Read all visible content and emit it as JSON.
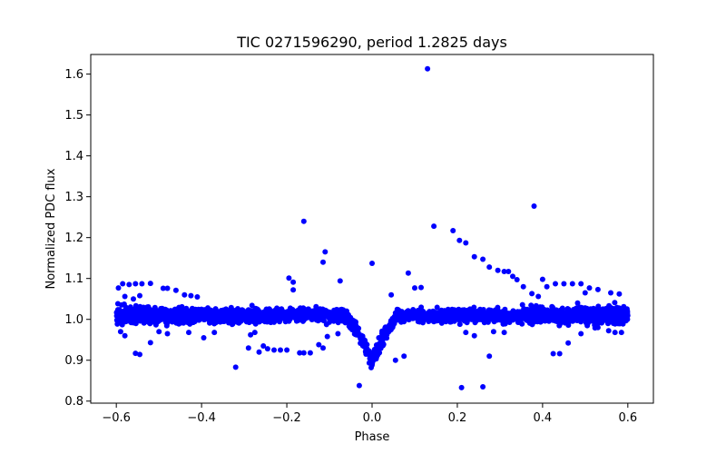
{
  "chart_data": {
    "type": "scatter",
    "title": "TIC 0271596290, period 1.2825 days",
    "xlabel": "Phase",
    "ylabel": "Normalized PDC flux",
    "xlim": [
      -0.66,
      0.66
    ],
    "ylim": [
      0.795,
      1.648
    ],
    "xticks": [
      -0.6,
      -0.4,
      -0.2,
      0.0,
      0.2,
      0.4,
      0.6
    ],
    "xtick_labels": [
      "−0.6",
      "−0.4",
      "−0.2",
      "0.0",
      "0.2",
      "0.4",
      "0.6"
    ],
    "yticks": [
      0.8,
      0.9,
      1.0,
      1.1,
      1.2,
      1.3,
      1.4,
      1.5,
      1.6
    ],
    "ytick_labels": [
      "0.8",
      "0.9",
      "1.0",
      "1.1",
      "1.2",
      "1.3",
      "1.4",
      "1.5",
      "1.6"
    ],
    "grid": false,
    "marker_color": "#0000ff",
    "series": [
      {
        "name": "PDC flux",
        "band": {
          "x_range": [
            -0.6,
            0.6
          ],
          "baseline_flux": 1.01,
          "scatter": 0.015,
          "dip_center": 0.0,
          "dip_half_width": 0.07,
          "dip_min_flux": 0.895
        },
        "points": [
          [
            0.13,
            1.613
          ],
          [
            0.38,
            1.277
          ],
          [
            0.145,
            1.228
          ],
          [
            -0.16,
            1.24
          ],
          [
            0.19,
            1.217
          ],
          [
            0.205,
            1.193
          ],
          [
            0.22,
            1.187
          ],
          [
            0.24,
            1.153
          ],
          [
            0.26,
            1.147
          ],
          [
            0.275,
            1.128
          ],
          [
            -0.11,
            1.165
          ],
          [
            -0.115,
            1.14
          ],
          [
            0.0,
            1.137
          ],
          [
            0.085,
            1.113
          ],
          [
            0.1,
            1.077
          ],
          [
            0.115,
            1.078
          ],
          [
            -0.075,
            1.094
          ],
          [
            -0.195,
            1.101
          ],
          [
            -0.185,
            1.091
          ],
          [
            -0.185,
            1.072
          ],
          [
            -0.54,
            1.087
          ],
          [
            -0.555,
            1.087
          ],
          [
            -0.57,
            1.085
          ],
          [
            -0.585,
            1.087
          ],
          [
            -0.52,
            1.088
          ],
          [
            -0.595,
            1.077
          ],
          [
            -0.49,
            1.076
          ],
          [
            -0.48,
            1.076
          ],
          [
            -0.46,
            1.071
          ],
          [
            -0.44,
            1.06
          ],
          [
            -0.425,
            1.058
          ],
          [
            -0.41,
            1.055
          ],
          [
            0.295,
            1.12
          ],
          [
            0.31,
            1.117
          ],
          [
            0.32,
            1.117
          ],
          [
            0.33,
            1.105
          ],
          [
            0.34,
            1.097
          ],
          [
            0.355,
            1.08
          ],
          [
            0.4,
            1.098
          ],
          [
            0.41,
            1.08
          ],
          [
            0.43,
            1.087
          ],
          [
            0.45,
            1.087
          ],
          [
            0.47,
            1.087
          ],
          [
            0.49,
            1.087
          ],
          [
            0.51,
            1.077
          ],
          [
            0.53,
            1.073
          ],
          [
            0.56,
            1.065
          ],
          [
            0.58,
            1.062
          ],
          [
            0.5,
            1.065
          ],
          [
            0.39,
            1.056
          ],
          [
            0.375,
            1.063
          ],
          [
            -0.58,
            1.056
          ],
          [
            -0.56,
            1.05
          ],
          [
            -0.545,
            1.058
          ],
          [
            0.045,
            1.06
          ],
          [
            -0.555,
            0.917
          ],
          [
            -0.545,
            0.914
          ],
          [
            -0.52,
            0.943
          ],
          [
            -0.59,
            0.97
          ],
          [
            -0.58,
            0.96
          ],
          [
            -0.32,
            0.883
          ],
          [
            -0.29,
            0.93
          ],
          [
            -0.265,
            0.92
          ],
          [
            -0.255,
            0.935
          ],
          [
            -0.245,
            0.928
          ],
          [
            -0.23,
            0.925
          ],
          [
            -0.215,
            0.925
          ],
          [
            -0.2,
            0.925
          ],
          [
            -0.17,
            0.918
          ],
          [
            -0.16,
            0.918
          ],
          [
            -0.145,
            0.918
          ],
          [
            -0.125,
            0.938
          ],
          [
            -0.115,
            0.93
          ],
          [
            -0.105,
            0.958
          ],
          [
            -0.08,
            0.965
          ],
          [
            -0.03,
            0.838
          ],
          [
            0.055,
            0.9
          ],
          [
            0.075,
            0.91
          ],
          [
            0.21,
            0.833
          ],
          [
            0.26,
            0.835
          ],
          [
            0.275,
            0.91
          ],
          [
            0.285,
            0.97
          ],
          [
            0.425,
            0.916
          ],
          [
            0.44,
            0.916
          ],
          [
            0.46,
            0.942
          ],
          [
            0.49,
            0.965
          ],
          [
            0.53,
            0.98
          ],
          [
            0.555,
            0.972
          ],
          [
            0.57,
            0.968
          ],
          [
            0.585,
            0.968
          ],
          [
            -0.37,
            0.968
          ],
          [
            -0.395,
            0.955
          ],
          [
            -0.43,
            0.968
          ],
          [
            -0.48,
            0.965
          ],
          [
            -0.5,
            0.97
          ],
          [
            -0.285,
            0.962
          ],
          [
            -0.275,
            0.968
          ],
          [
            0.22,
            0.968
          ],
          [
            0.24,
            0.96
          ],
          [
            0.31,
            0.968
          ]
        ]
      }
    ]
  }
}
